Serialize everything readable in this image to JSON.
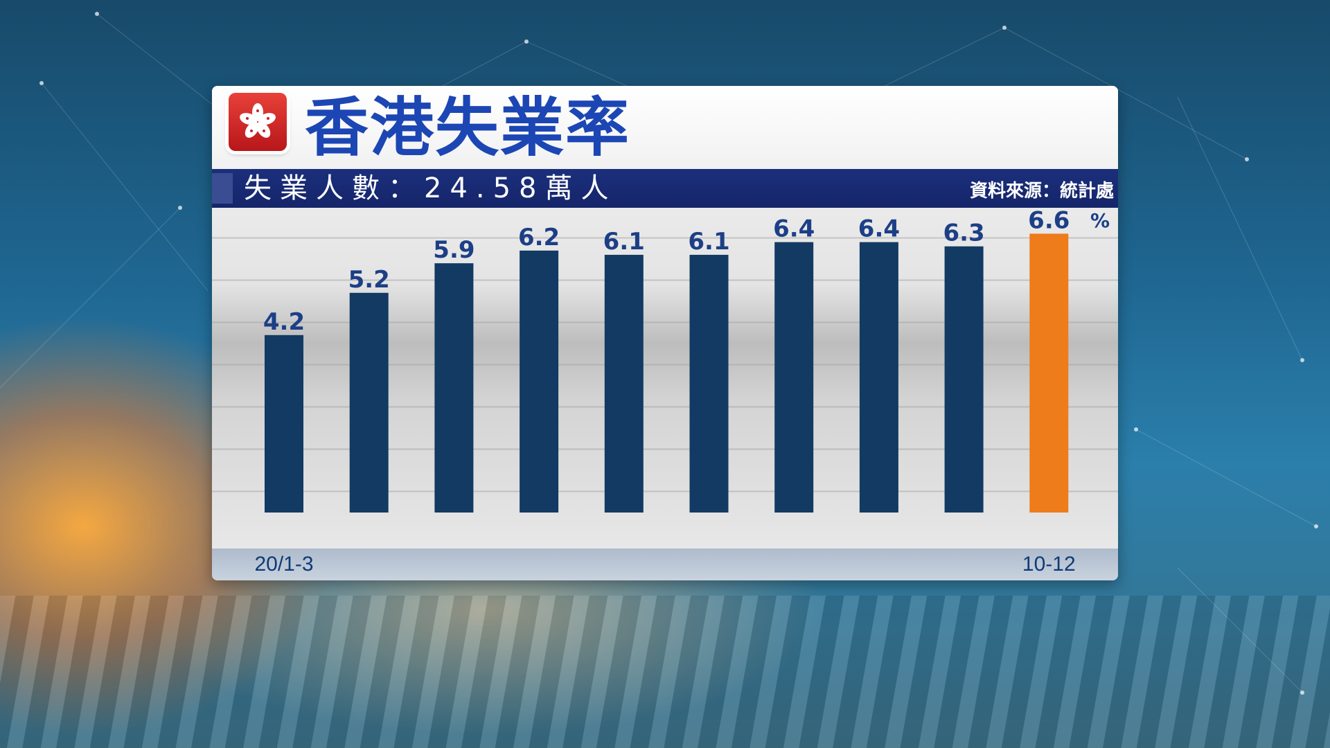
{
  "title": "香港失業率",
  "subtitle": "失業人數：24.58萬人",
  "source": "資料來源：統計處",
  "colors": {
    "bar": "#123a63",
    "highlight": "#ee7c1b",
    "label": "#1c3f86",
    "title": "#1c46b4",
    "flag_red": "#c8202a"
  },
  "chart_data": {
    "type": "bar",
    "categories": [
      "20/1-3",
      "",
      "",
      "",
      "",
      "",
      "",
      "",
      "",
      "10-12"
    ],
    "values": [
      4.2,
      5.2,
      5.9,
      6.2,
      6.1,
      6.1,
      6.4,
      6.4,
      6.3,
      6.6
    ],
    "value_labels": [
      "4.2",
      "5.2",
      "5.9",
      "6.2",
      "6.1",
      "6.1",
      "6.4",
      "6.4",
      "6.3",
      "6.6"
    ],
    "highlight_index": 9,
    "ylabel": "%",
    "ylim": [
      -0.5,
      7.5
    ],
    "grid": true,
    "legend": "none"
  }
}
